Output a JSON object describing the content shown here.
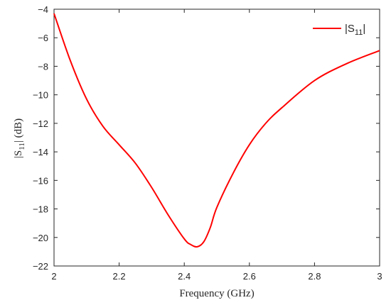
{
  "chart_data": {
    "type": "line",
    "xlabel": "Frequency (GHz)",
    "ylabel": "|S11| (dB)",
    "xlim": [
      2,
      3
    ],
    "ylim": [
      -22,
      -4
    ],
    "xticks": [
      2,
      2.2,
      2.4,
      2.6,
      2.8,
      3
    ],
    "yticks": [
      -22,
      -20,
      -18,
      -16,
      -14,
      -12,
      -10,
      -8,
      -6,
      -4
    ],
    "xtick_labels": [
      "2",
      "2.2",
      "2.4",
      "2.6",
      "2.8",
      "3"
    ],
    "ytick_labels": [
      "−22",
      "−20",
      "−18",
      "−16",
      "−14",
      "−12",
      "−10",
      "−8",
      "−6",
      "−4"
    ],
    "grid": false,
    "legend_position": "top-right",
    "series": [
      {
        "name": "|S11|",
        "color": "#ff0000",
        "x": [
          2.0,
          2.05,
          2.1,
          2.15,
          2.2,
          2.25,
          2.3,
          2.35,
          2.4,
          2.42,
          2.44,
          2.46,
          2.48,
          2.5,
          2.55,
          2.6,
          2.65,
          2.7,
          2.8,
          2.9,
          3.0
        ],
        "y": [
          -4.3,
          -7.6,
          -10.3,
          -12.2,
          -13.5,
          -14.8,
          -16.5,
          -18.4,
          -20.1,
          -20.5,
          -20.65,
          -20.3,
          -19.3,
          -17.9,
          -15.5,
          -13.5,
          -12.0,
          -10.9,
          -9.0,
          -7.8,
          -6.9
        ]
      }
    ]
  }
}
